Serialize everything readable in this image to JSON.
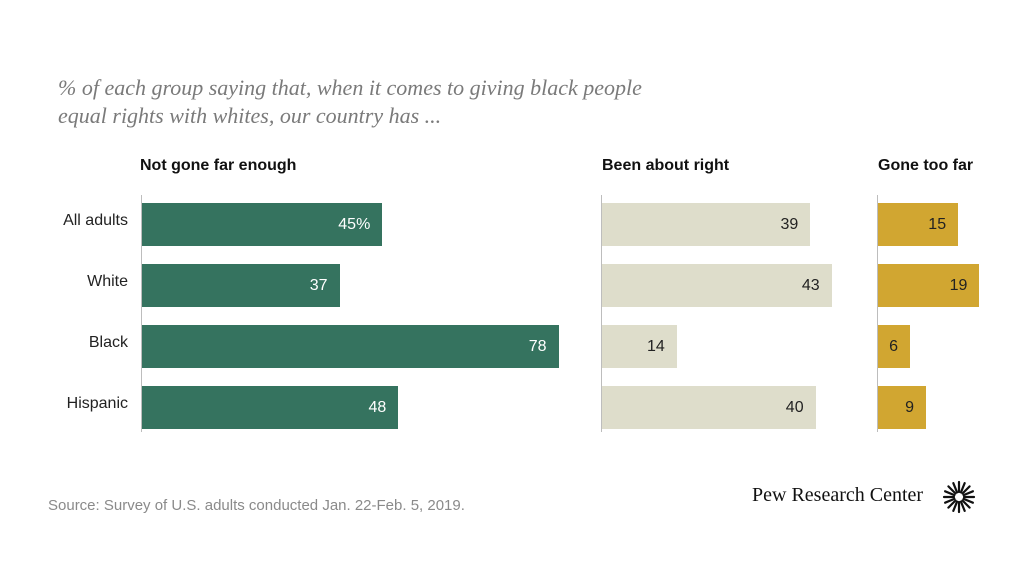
{
  "subtitle": {
    "line1": "% of each group saying that, when it comes to giving black people",
    "line2": "equal rights with whites, our country has ..."
  },
  "chart_data": {
    "type": "bar",
    "orientation": "horizontal",
    "subtitle": "% of each group saying that, when it comes to giving black people equal rights with whites, our country has ...",
    "categories": [
      "All adults",
      "White",
      "Black",
      "Hispanic"
    ],
    "series": [
      {
        "name": "Not gone far enough",
        "values": [
          45,
          37,
          78,
          48
        ],
        "labels": [
          "45%",
          "37",
          "78",
          "48"
        ],
        "color": "#35735f",
        "text_color": "#ffffff"
      },
      {
        "name": "Been about right",
        "values": [
          39,
          43,
          14,
          40
        ],
        "labels": [
          "39",
          "43",
          "14",
          "40"
        ],
        "color": "#deddcb",
        "text_color": "#222222"
      },
      {
        "name": "Gone too far",
        "values": [
          15,
          19,
          6,
          9
        ],
        "labels": [
          "15",
          "19",
          "6",
          "9"
        ],
        "color": "#d1a631",
        "text_color": "#222222"
      }
    ],
    "xlabel": "",
    "ylabel": ""
  },
  "footer": {
    "source": "Source: Survey of U.S. adults conducted Jan. 22-Feb. 5, 2019.",
    "brand": "Pew Research Center"
  }
}
